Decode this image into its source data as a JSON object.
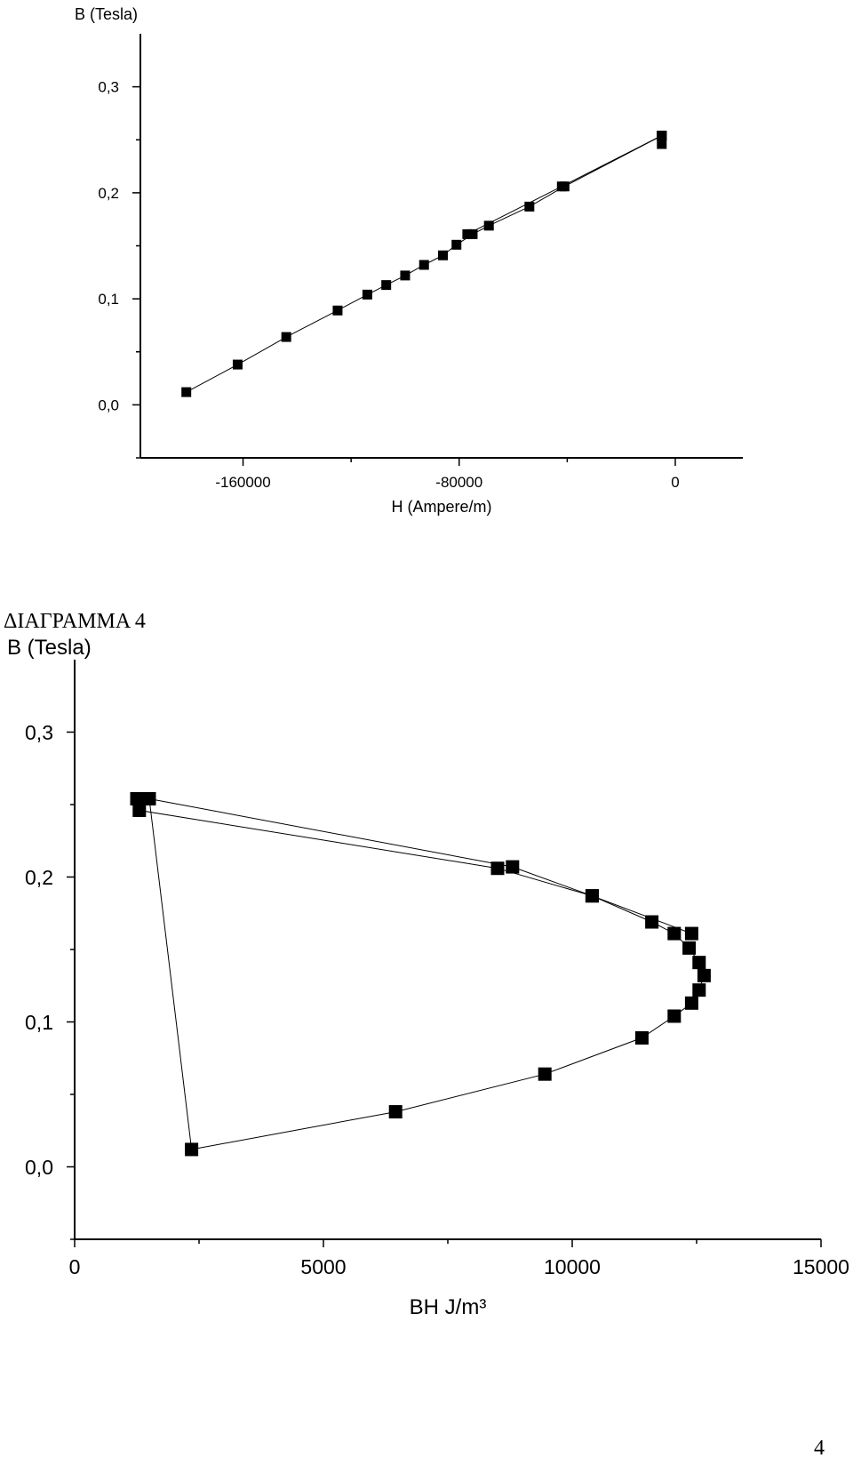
{
  "heading": "ΔΙΑΓΡΑΜΜΑ 4",
  "page_number": "4",
  "chart_data": [
    {
      "type": "line",
      "title": "",
      "xlabel": "H (Ampere/m)",
      "ylabel": "B (Tesla)",
      "xlim": [
        -198000,
        25000
      ],
      "ylim": [
        -0.05,
        0.35
      ],
      "x_ticks": [
        {
          "v": -160000,
          "label": "-160000"
        },
        {
          "v": -80000,
          "label": "-80000"
        },
        {
          "v": 0,
          "label": "0"
        }
      ],
      "y_ticks": [
        {
          "v": 0.0,
          "label": "0,0"
        },
        {
          "v": 0.1,
          "label": "0,1"
        },
        {
          "v": 0.2,
          "label": "0,2"
        },
        {
          "v": 0.3,
          "label": "0,3"
        }
      ],
      "grid": false,
      "series": [
        {
          "x": [
            -5000,
            -5000,
            -5000,
            -41000,
            -54000,
            -69000,
            -75000,
            -81000,
            -86000,
            -93000,
            -100000,
            -107000,
            -114000,
            -125000,
            -144000,
            -162000,
            -181000
          ],
          "y": [
            0.254,
            0.246,
            0.254,
            0.206,
            0.187,
            0.169,
            0.161,
            0.151,
            0.141,
            0.132,
            0.122,
            0.113,
            0.104,
            0.089,
            0.064,
            0.038,
            0.012
          ]
        },
        {
          "x": [
            -5000,
            -42000,
            -77000
          ],
          "y": [
            0.254,
            0.206,
            0.161
          ]
        }
      ]
    },
    {
      "type": "line",
      "title": "",
      "xlabel": "BH   J/m³",
      "ylabel": "B (Tesla)",
      "xlim": [
        0,
        15000
      ],
      "ylim": [
        -0.05,
        0.35
      ],
      "x_ticks": [
        {
          "v": 0,
          "label": "0"
        },
        {
          "v": 5000,
          "label": "5000"
        },
        {
          "v": 10000,
          "label": "10000"
        },
        {
          "v": 15000,
          "label": "15000"
        }
      ],
      "y_ticks": [
        {
          "v": 0.0,
          "label": "0,0"
        },
        {
          "v": 0.1,
          "label": "0,1"
        },
        {
          "v": 0.2,
          "label": "0,2"
        },
        {
          "v": 0.3,
          "label": "0,3"
        }
      ],
      "grid": false,
      "series": [
        {
          "x": [
            1500,
            1250,
            1300,
            8500,
            10400,
            11600,
            12050,
            12350,
            12550,
            12650,
            12550,
            12400,
            12050,
            11400,
            9450,
            6450,
            2350,
            1500
          ],
          "y": [
            0.254,
            0.254,
            0.246,
            0.206,
            0.187,
            0.169,
            0.161,
            0.151,
            0.141,
            0.132,
            0.122,
            0.113,
            0.104,
            0.089,
            0.064,
            0.038,
            0.012,
            0.254
          ]
        },
        {
          "x": [
            1500,
            8800,
            10400,
            12400
          ],
          "y": [
            0.254,
            0.207,
            0.187,
            0.161
          ]
        }
      ]
    }
  ]
}
